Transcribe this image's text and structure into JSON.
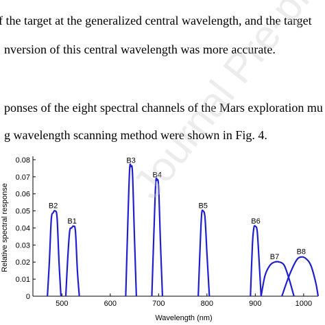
{
  "document": {
    "lines": [
      "f the target at the generalized central wavelength, and the target",
      "nversion of this central wavelength was more accurate.",
      "ponses of the eight spectral channels of the Mars exploration mu",
      "g wavelength scanning method were shown in Fig. 4."
    ]
  },
  "watermark": "Journal Pre-proof",
  "colors": {
    "series": "#1f1fd0",
    "axis": "#000000"
  },
  "chart_data": {
    "type": "line",
    "xlabel": "Wavelength (nm)",
    "ylabel": "Relative spectral response",
    "xlim": [
      440,
      1030
    ],
    "ylim": [
      0,
      0.082
    ],
    "xticks": [
      500,
      600,
      700,
      800,
      900,
      1000
    ],
    "xtick_labels": [
      "500",
      "600",
      "700",
      "800",
      "900",
      "1000"
    ],
    "yticks": [
      0,
      0.01,
      0.02,
      0.03,
      0.04,
      0.05,
      0.06,
      0.07,
      0.08
    ],
    "ytick_labels": [
      "0",
      "0.01",
      "0.02",
      "0.03",
      "0.04",
      "0.05",
      "0.06",
      "0.07",
      "0.08"
    ],
    "grid": false,
    "series": [
      {
        "name": "B2",
        "x": [
          470,
          474,
          478,
          482,
          486,
          490,
          494,
          498
        ],
        "y": [
          0,
          0.02,
          0.045,
          0.049,
          0.05,
          0.046,
          0.02,
          0
        ]
      },
      {
        "name": "B1",
        "x": [
          508,
          512,
          516,
          520,
          524,
          528,
          532,
          536
        ],
        "y": [
          0,
          0.022,
          0.038,
          0.04,
          0.041,
          0.038,
          0.015,
          0
        ]
      },
      {
        "name": "B3",
        "x": [
          632,
          636,
          640,
          643,
          646,
          650,
          654
        ],
        "y": [
          0,
          0.04,
          0.074,
          0.076,
          0.072,
          0.035,
          0
        ]
      },
      {
        "name": "B4",
        "x": [
          686,
          690,
          694,
          697,
          700,
          704,
          708
        ],
        "y": [
          0,
          0.035,
          0.066,
          0.068,
          0.064,
          0.03,
          0
        ]
      },
      {
        "name": "B5",
        "x": [
          782,
          786,
          789,
          792,
          796,
          800,
          805
        ],
        "y": [
          0,
          0.03,
          0.048,
          0.05,
          0.046,
          0.025,
          0
        ]
      },
      {
        "name": "B6",
        "x": [
          890,
          894,
          897,
          900,
          904,
          908,
          912
        ],
        "y": [
          0,
          0.03,
          0.04,
          0.041,
          0.038,
          0.02,
          0
        ]
      },
      {
        "name": "B7",
        "x": [
          912,
          920,
          930,
          940,
          950,
          960,
          970,
          980
        ],
        "y": [
          0,
          0.012,
          0.018,
          0.02,
          0.02,
          0.018,
          0.01,
          0
        ]
      },
      {
        "name": "B8",
        "x": [
          955,
          970,
          985,
          995,
          1005,
          1015,
          1025,
          1030
        ],
        "y": [
          0,
          0.012,
          0.021,
          0.023,
          0.022,
          0.018,
          0.008,
          0
        ]
      }
    ],
    "label_anchors": [
      {
        "name": "B2",
        "x": 482,
        "y": 0.0505
      },
      {
        "name": "B1",
        "x": 521,
        "y": 0.0415
      },
      {
        "name": "B3",
        "x": 643,
        "y": 0.077
      },
      {
        "name": "B4",
        "x": 697,
        "y": 0.0685
      },
      {
        "name": "B5",
        "x": 792,
        "y": 0.0505
      },
      {
        "name": "B6",
        "x": 901,
        "y": 0.0415
      },
      {
        "name": "B7",
        "x": 940,
        "y": 0.0205
      },
      {
        "name": "B8",
        "x": 995,
        "y": 0.0235
      }
    ]
  }
}
